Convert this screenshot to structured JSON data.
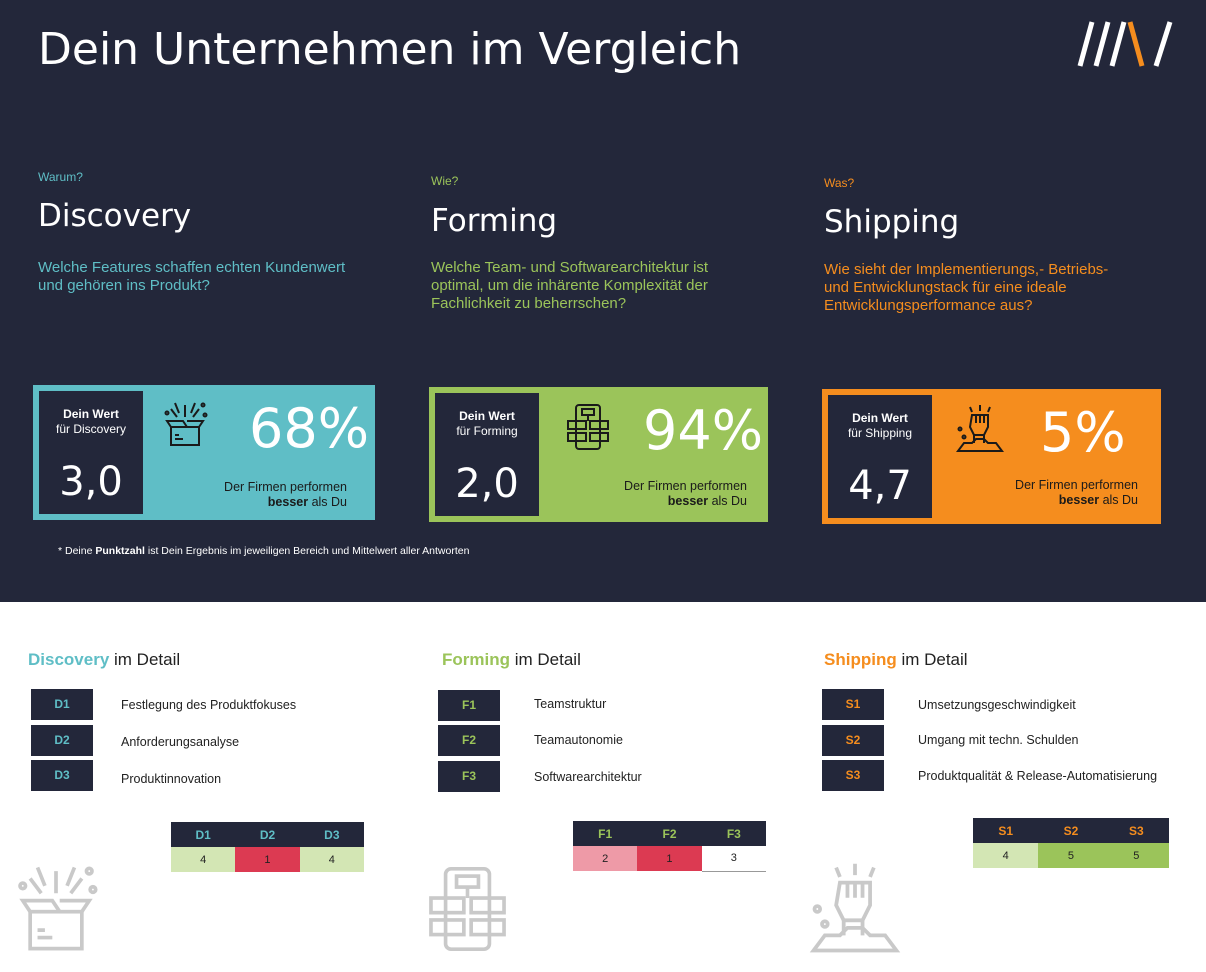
{
  "page": {
    "title": "Dein Unternehmen im Vergleich",
    "logo_text": "///\\/"
  },
  "colors": {
    "background": "#23273a",
    "discovery": "#5fbec6",
    "forming": "#9bc45a",
    "shipping": "#f58d1e"
  },
  "sections": [
    {
      "eyebrow": "Warum?",
      "heading": "Discovery",
      "question_lines": [
        "Welche Features schaffen echten Kundenwert",
        "und gehören ins Produkt?"
      ],
      "card_label_1": "Dein Wert",
      "card_label_2": "für Discovery",
      "score": "3,0",
      "percent": "68%",
      "desc_1": "Der Firmen performen",
      "desc_2_bold": "besser",
      "desc_2_rest": " als Du",
      "icon": "gift-box-icon"
    },
    {
      "eyebrow": "Wie?",
      "heading": "Forming",
      "question_lines": [
        "Welche Team- und Softwarearchitektur ist",
        "optimal, um die inhärente Komplexität der",
        "Fachlichkeit zu beherrschen?"
      ],
      "card_label_1": "Dein Wert",
      "card_label_2": "für Forming",
      "score": "2,0",
      "percent": "94%",
      "desc_1": "Der Firmen performen",
      "desc_2_bold": "besser",
      "desc_2_rest": " als Du",
      "icon": "architecture-icon"
    },
    {
      "eyebrow": "Was?",
      "heading": "Shipping",
      "question_lines": [
        "Wie sieht der Implementierungs,- Betriebs-",
        "und Entwicklungstack für eine ideale",
        "Entwicklungsperformance aus?"
      ],
      "card_label_1": "Dein Wert",
      "card_label_2": "für Shipping",
      "score": "4,7",
      "percent": "5%",
      "desc_1": "Der Firmen performen",
      "desc_2_bold": "besser",
      "desc_2_rest": " als Du",
      "icon": "raised-fist-icon"
    }
  ],
  "footnote": {
    "prefix": "* Deine ",
    "bold": "Punktzahl",
    "suffix": " ist Dein Ergebnis im jeweiligen Bereich und Mittelwert aller Antworten"
  },
  "details": [
    {
      "keyword": "Discovery",
      "suffix": " im Detail",
      "items": [
        {
          "code": "D1",
          "label": "Festlegung des Produktfokuses"
        },
        {
          "code": "D2",
          "label": "Anforderungsanalyse"
        },
        {
          "code": "D3",
          "label": "Produktinnovation"
        }
      ],
      "table": {
        "headers": [
          "D1",
          "D2",
          "D3"
        ],
        "values": [
          "4",
          "1",
          "4"
        ],
        "cell_colors": [
          "#d3e6b4",
          "#dc3a52",
          "#d3e6b4"
        ]
      }
    },
    {
      "keyword": "Forming",
      "suffix": " im Detail",
      "items": [
        {
          "code": "F1",
          "label": "Teamstruktur"
        },
        {
          "code": "F2",
          "label": "Teamautonomie"
        },
        {
          "code": "F3",
          "label": "Softwarearchitektur"
        }
      ],
      "table": {
        "headers": [
          "F1",
          "F2",
          "F3"
        ],
        "values": [
          "2",
          "1",
          "3"
        ],
        "cell_colors": [
          "#ee9aa7",
          "#dc3a52",
          "#ffffff"
        ]
      }
    },
    {
      "keyword": "Shipping",
      "suffix": " im Detail",
      "items": [
        {
          "code": "S1",
          "label": "Umsetzungsgeschwindigkeit"
        },
        {
          "code": "S2",
          "label": "Umgang mit techn. Schulden"
        },
        {
          "code": "S3",
          "label": "Produktqualität & Release-Automatisierung"
        }
      ],
      "table": {
        "headers": [
          "S1",
          "S2",
          "S3"
        ],
        "values": [
          "4",
          "5",
          "5"
        ],
        "cell_colors": [
          "#d3e6b4",
          "#9bc45a",
          "#9bc45a"
        ]
      }
    }
  ]
}
